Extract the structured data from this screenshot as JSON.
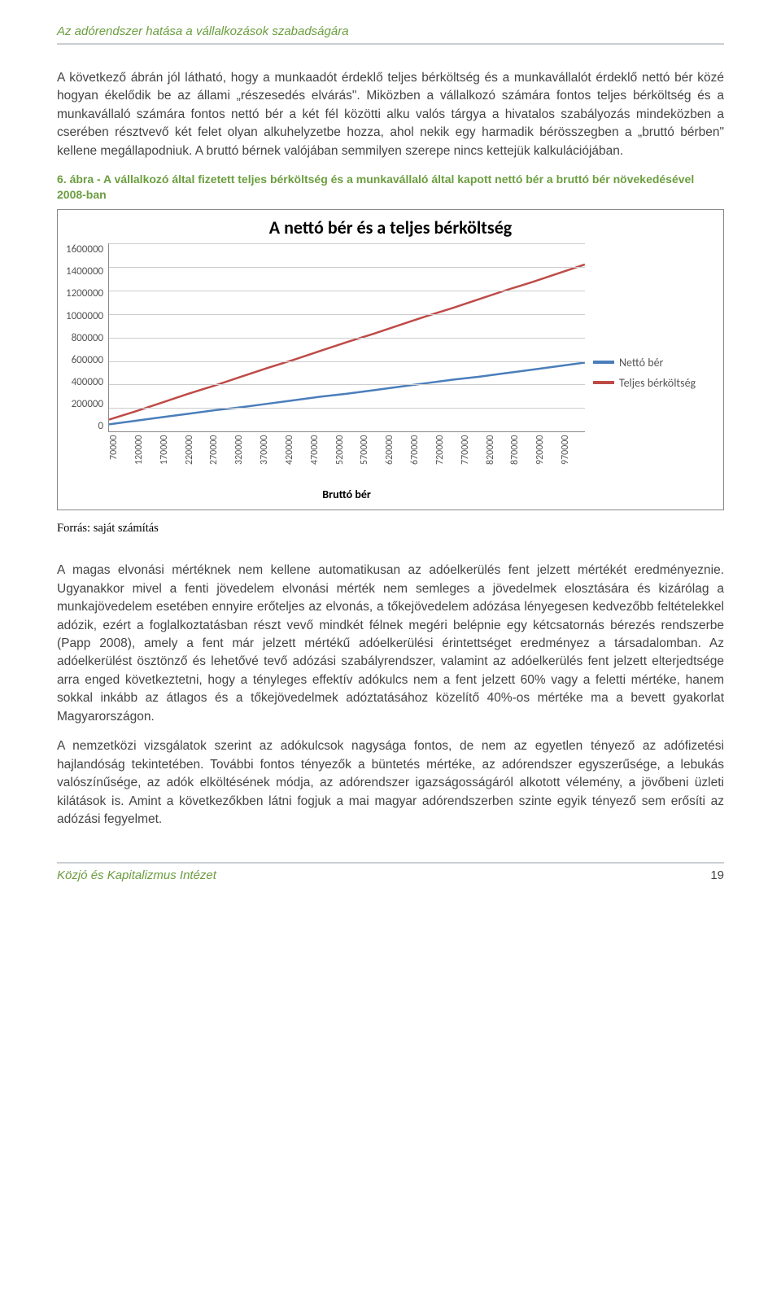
{
  "header": {
    "title": "Az adórendszer hatása a vállalkozások szabadságára"
  },
  "paragraphs": {
    "p1": "A következő ábrán jól látható, hogy a munkaadót érdeklő teljes bérköltség és a munkavállalót érdeklő nettó bér közé hogyan ékelődik be az állami „részesedés elvárás\". Miközben a vállalkozó számára fontos teljes bérköltség és a munkavállaló számára fontos nettó bér a két fél közötti alku valós tárgya a hivatalos szabályozás mindeközben a cserében résztvevő két felet olyan alkuhelyzetbe hozza, ahol nekik egy harmadik bérösszegben a „bruttó bérben\" kellene megállapodniuk. A bruttó bérnek valójában semmilyen szerepe nincs kettejük kalkulációjában.",
    "p2": "A magas elvonási mértéknek nem kellene automatikusan az adóelkerülés fent jelzett mértékét eredményeznie. Ugyanakkor mivel a fenti jövedelem elvonási mérték nem semleges a jövedelmek elosztására és kizárólag a munkajövedelem esetében ennyire erőteljes az elvonás, a tőkejövedelem adózása lényegesen kedvezőbb feltételekkel adózik, ezért a foglalkoztatásban részt vevő mindkét félnek megéri belépnie egy kétcsatornás bérezés rendszerbe (Papp 2008), amely a fent már jelzett mértékű adóelkerülési érintettséget eredményez a társadalomban. Az adóelkerülést ösztönző és lehetővé tevő adózási szabályrendszer, valamint az adóelkerülés fent jelzett elterjedtsége arra enged következtetni, hogy a tényleges effektív adókulcs nem a fent jelzett 60% vagy a feletti mértéke, hanem sokkal inkább az átlagos és a tőkejövedelmek adóztatásához közelítő 40%-os mértéke ma a bevett gyakorlat Magyarországon.",
    "p3": "A nemzetközi vizsgálatok szerint az adókulcsok nagysága fontos, de nem az egyetlen tényező az adófizetési hajlandóság tekintetében. További fontos tényezők a büntetés mértéke, az adórendszer egyszerűsége, a lebukás valószínűsége, az adók elköltésének módja, az adórendszer igazságosságáról alkotott vélemény, a jövőbeni üzleti kilátások is. Amint a következőkben látni fogjuk a mai magyar adórendszerben szinte egyik tényező sem erősíti az adózási fegyelmet."
  },
  "figure_caption": "6. ábra - A vállalkozó által fizetett teljes bérköltség és a munkavállaló által kapott nettó bér a bruttó bér növekedésével 2008-ban",
  "chart": {
    "type": "line",
    "title": "A nettó bér és a teljes bérköltség",
    "title_fontsize": 22,
    "xlabel": "Bruttó bér",
    "categories": [
      "70000",
      "120000",
      "170000",
      "220000",
      "270000",
      "320000",
      "370000",
      "420000",
      "470000",
      "520000",
      "570000",
      "620000",
      "670000",
      "720000",
      "770000",
      "820000",
      "870000",
      "920000",
      "970000"
    ],
    "ylim": [
      0,
      1600000
    ],
    "ytick_step": 200000,
    "yticks": [
      "1600000",
      "1400000",
      "1200000",
      "1000000",
      "800000",
      "600000",
      "400000",
      "200000",
      "0"
    ],
    "series": [
      {
        "name": "Nettó bér",
        "color": "#4a7ebb",
        "line_width": 2.5,
        "values": [
          60000,
          90000,
          120000,
          150000,
          180000,
          205000,
          235000,
          265000,
          295000,
          320000,
          350000,
          380000,
          410000,
          440000,
          465000,
          495000,
          525000,
          555000,
          585000
        ]
      },
      {
        "name": "Teljes bérköltség",
        "color": "#be4b48",
        "line_width": 2.5,
        "values": [
          100000,
          170000,
          245000,
          320000,
          390000,
          465000,
          540000,
          610000,
          685000,
          760000,
          830000,
          905000,
          980000,
          1050000,
          1125000,
          1200000,
          1270000,
          1345000,
          1420000
        ]
      }
    ],
    "background_color": "#ffffff",
    "grid_color": "#cccccc",
    "border_color": "#888888",
    "tick_fontsize": 13,
    "label_fontsize": 14
  },
  "source": "Forrás: saját számítás",
  "footer": {
    "left": "Közjó és Kapitalizmus Intézet",
    "page": "19"
  }
}
